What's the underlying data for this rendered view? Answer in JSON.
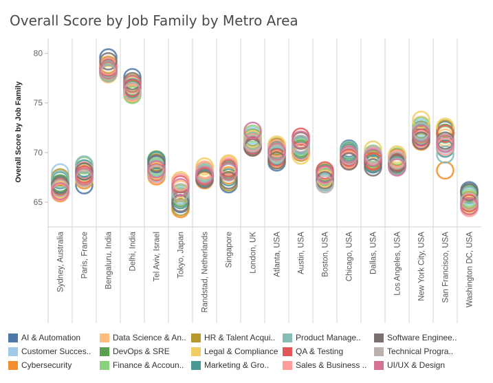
{
  "chart_data": {
    "type": "scatter",
    "title": "Overall Score by Job Family by Metro Area",
    "ylabel": "Overall Score by Job Family",
    "xlabel": "",
    "ylim": [
      62.5,
      81.5
    ],
    "yticks": [
      65,
      70,
      75,
      80
    ],
    "categories": [
      "Sydney, Australia",
      "Paris, France",
      "Bengaluru, India",
      "Delhi, India",
      "Tel Aviv, Israel",
      "Tokyo, Japan",
      "Randstad, Netherlands",
      "Singapore",
      "London, UK",
      "Atlanta, USA",
      "Austin, USA",
      "Boston, USA",
      "Chicago, USA",
      "Dallas, USA",
      "Los Angeles, USA",
      "New York City, USA",
      "San Francisco, USA",
      "Washington DC, USA"
    ],
    "series": [
      {
        "name": "AI & Automation",
        "color": "#4e79a7",
        "values": [
          66.8,
          66.7,
          79.6,
          77.6,
          68.8,
          64.8,
          67.5,
          66.8,
          70.8,
          69.0,
          70.8,
          67.5,
          70.4,
          68.8,
          69.0,
          71.6,
          72.3,
          66.2
        ]
      },
      {
        "name": "Customer Succes..",
        "color": "#a0cbe8",
        "values": [
          68.0,
          68.0,
          78.6,
          76.3,
          68.5,
          65.8,
          68.0,
          68.3,
          71.7,
          70.2,
          70.6,
          67.0,
          69.6,
          69.6,
          69.2,
          72.5,
          70.8,
          65.6
        ]
      },
      {
        "name": "Cybersecurity",
        "color": "#f28e2b",
        "values": [
          65.9,
          67.2,
          78.2,
          75.9,
          67.6,
          64.3,
          67.2,
          67.7,
          70.5,
          69.3,
          70.0,
          67.8,
          69.2,
          69.0,
          68.8,
          71.1,
          68.2,
          64.6
        ]
      },
      {
        "name": "Data Science & An..",
        "color": "#ffbe7d",
        "values": [
          66.3,
          67.7,
          78.9,
          76.0,
          68.1,
          66.3,
          68.3,
          68.8,
          71.3,
          70.5,
          70.3,
          67.3,
          69.8,
          69.2,
          69.3,
          72.8,
          71.5,
          65.0
        ]
      },
      {
        "name": "DevOps & SRE",
        "color": "#59a14f",
        "values": [
          66.9,
          68.1,
          78.5,
          76.4,
          69.3,
          65.4,
          67.8,
          68.2,
          71.5,
          70.3,
          70.4,
          67.7,
          70.2,
          69.4,
          69.1,
          72.3,
          72.0,
          65.8
        ]
      },
      {
        "name": "Finance & Accoun..",
        "color": "#8cd17d",
        "values": [
          66.6,
          68.7,
          78.2,
          75.8,
          68.6,
          65.9,
          68.1,
          68.5,
          71.9,
          70.0,
          70.6,
          67.6,
          69.8,
          69.9,
          69.6,
          72.7,
          71.8,
          65.4
        ]
      },
      {
        "name": "HR & Talent Acqui..",
        "color": "#b6992d",
        "values": [
          67.5,
          67.5,
          78.8,
          77.0,
          69.0,
          64.5,
          67.6,
          67.0,
          71.1,
          70.6,
          70.0,
          68.0,
          69.4,
          69.2,
          69.5,
          71.8,
          72.4,
          65.2
        ]
      },
      {
        "name": "Legal & Compliance",
        "color": "#f1ce63",
        "values": [
          66.2,
          67.9,
          77.9,
          76.8,
          68.2,
          67.2,
          68.6,
          68.9,
          71.4,
          70.8,
          69.7,
          67.4,
          69.9,
          70.3,
          69.8,
          73.3,
          72.6,
          64.8
        ]
      },
      {
        "name": "Marketing & Gro..",
        "color": "#499894",
        "values": [
          67.2,
          68.4,
          78.0,
          76.6,
          69.2,
          65.2,
          67.4,
          67.5,
          70.6,
          69.6,
          70.2,
          67.9,
          70.0,
          68.9,
          68.7,
          72.0,
          70.4,
          66.0
        ]
      },
      {
        "name": "Product Manage..",
        "color": "#86bcb6",
        "values": [
          67.3,
          68.8,
          78.4,
          76.2,
          68.4,
          65.6,
          67.9,
          68.0,
          71.2,
          69.8,
          70.7,
          67.0,
          70.3,
          69.7,
          68.6,
          72.1,
          69.8,
          65.7
        ]
      },
      {
        "name": "QA & Testing",
        "color": "#e15759",
        "values": [
          66.5,
          67.8,
          78.6,
          76.5,
          68.0,
          66.8,
          67.6,
          68.4,
          70.7,
          69.5,
          71.6,
          68.2,
          69.5,
          69.1,
          69.0,
          71.5,
          71.9,
          64.9
        ]
      },
      {
        "name": "Sales & Business ..",
        "color": "#ff9d9a",
        "values": [
          66.0,
          68.2,
          78.7,
          76.1,
          67.8,
          67.0,
          68.2,
          68.6,
          71.0,
          70.4,
          70.1,
          67.7,
          69.3,
          69.7,
          69.4,
          71.3,
          70.6,
          64.4
        ]
      },
      {
        "name": "Software Enginee..",
        "color": "#79706e",
        "values": [
          66.7,
          68.1,
          79.2,
          77.2,
          68.9,
          64.9,
          67.3,
          67.2,
          70.5,
          69.2,
          71.2,
          67.2,
          69.1,
          68.5,
          68.9,
          71.2,
          71.2,
          66.0
        ]
      },
      {
        "name": "Technical Progra..",
        "color": "#bab0ac",
        "values": [
          66.4,
          67.4,
          78.0,
          76.2,
          67.9,
          66.0,
          67.8,
          68.0,
          70.9,
          69.9,
          70.9,
          66.8,
          69.7,
          69.8,
          69.2,
          72.2,
          71.0,
          65.1
        ]
      },
      {
        "name": "UI/UX & Design",
        "color": "#d37295",
        "values": [
          66.1,
          67.6,
          78.3,
          76.9,
          68.3,
          66.5,
          67.7,
          68.1,
          72.2,
          70.1,
          71.3,
          67.8,
          69.8,
          69.5,
          68.5,
          71.9,
          70.9,
          64.6
        ]
      }
    ]
  }
}
